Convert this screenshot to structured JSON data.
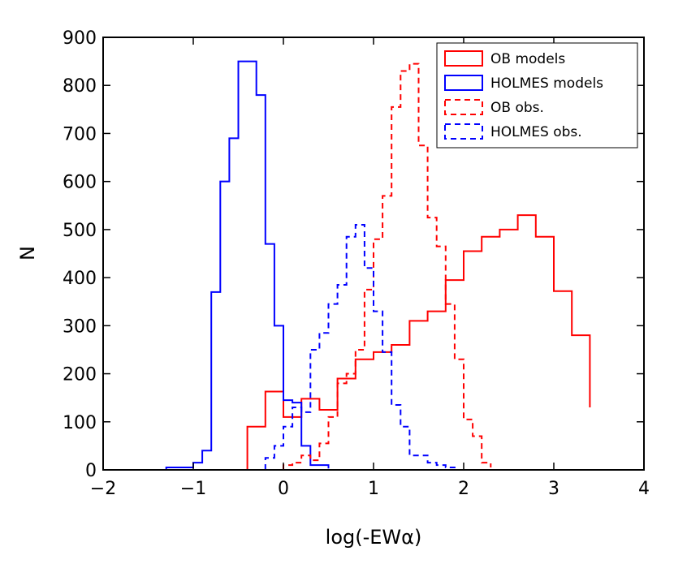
{
  "chart_data": {
    "type": "histogram",
    "xlabel": "log(-EWα)",
    "ylabel": "N",
    "xlim": [
      -2,
      4
    ],
    "ylim": [
      0,
      900
    ],
    "xticks": [
      -2,
      -1,
      0,
      1,
      2,
      3,
      4
    ],
    "xtick_labels": [
      "−2",
      "−1",
      "0",
      "1",
      "2",
      "3",
      "4"
    ],
    "yticks": [
      0,
      100,
      200,
      300,
      400,
      500,
      600,
      700,
      800,
      900
    ],
    "ytick_labels": [
      "0",
      "100",
      "200",
      "300",
      "400",
      "500",
      "600",
      "700",
      "800",
      "900"
    ],
    "grid": false,
    "legend_position": "top-right",
    "series": [
      {
        "name": "OB models",
        "color": "#ff0000",
        "style": "solid",
        "edges": [
          -0.4,
          -0.2,
          0.0,
          0.2,
          0.4,
          0.6,
          0.8,
          1.0,
          1.2,
          1.4,
          1.6,
          1.8,
          2.0,
          2.2,
          2.4,
          2.6,
          2.8,
          3.0,
          3.2,
          3.4
        ],
        "counts": [
          90,
          163,
          110,
          148,
          125,
          190,
          230,
          245,
          260,
          310,
          330,
          395,
          455,
          485,
          500,
          530,
          485,
          372,
          280,
          130
        ]
      },
      {
        "name": "HOLMES models",
        "color": "#0000ff",
        "style": "solid",
        "edges": [
          -1.3,
          -1.0,
          -0.9,
          -0.8,
          -0.7,
          -0.6,
          -0.5,
          -0.4,
          -0.3,
          -0.2,
          -0.1,
          0.0,
          0.1,
          0.2,
          0.3,
          0.5
        ],
        "counts": [
          5,
          15,
          40,
          370,
          600,
          690,
          850,
          850,
          780,
          470,
          300,
          145,
          140,
          50,
          10,
          3
        ]
      },
      {
        "name": "OB obs.",
        "color": "#ff0000",
        "style": "dashed",
        "edges": [
          0.0,
          0.1,
          0.2,
          0.3,
          0.4,
          0.5,
          0.6,
          0.7,
          0.8,
          0.9,
          1.0,
          1.1,
          1.2,
          1.3,
          1.4,
          1.5,
          1.6,
          1.7,
          1.8,
          1.9,
          2.0,
          2.1,
          2.2,
          2.3
        ],
        "counts": [
          10,
          15,
          30,
          20,
          55,
          110,
          180,
          200,
          250,
          375,
          480,
          570,
          755,
          830,
          845,
          675,
          525,
          465,
          345,
          230,
          105,
          70,
          15,
          5
        ]
      },
      {
        "name": "HOLMES obs.",
        "color": "#0000ff",
        "style": "dashed",
        "edges": [
          -0.2,
          -0.1,
          0.0,
          0.1,
          0.2,
          0.3,
          0.4,
          0.5,
          0.6,
          0.7,
          0.8,
          0.9,
          1.0,
          1.1,
          1.2,
          1.3,
          1.4,
          1.5,
          1.6,
          1.7,
          1.8,
          1.9
        ],
        "counts": [
          25,
          50,
          90,
          130,
          120,
          250,
          285,
          345,
          385,
          485,
          510,
          420,
          330,
          245,
          135,
          90,
          30,
          30,
          15,
          10,
          5,
          3
        ]
      }
    ]
  }
}
